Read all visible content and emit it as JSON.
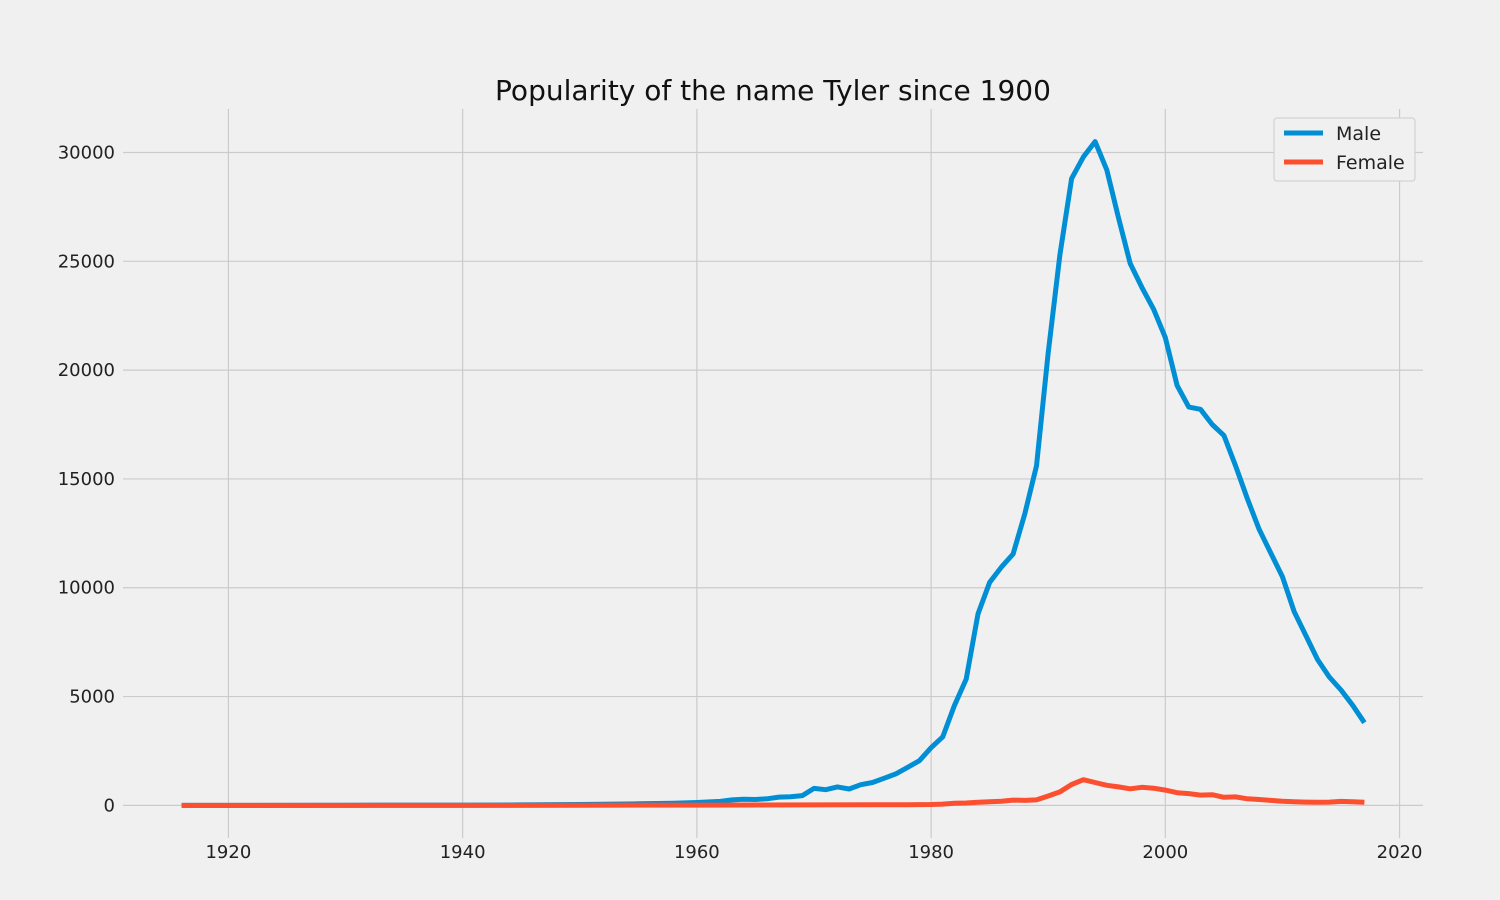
{
  "chart_data": {
    "type": "line",
    "title": "Popularity of the name Tyler since 1900",
    "xlabel": "",
    "ylabel": "",
    "xlim": [
      1911,
      2022
    ],
    "ylim": [
      -1500,
      32000
    ],
    "x_ticks": [
      1920,
      1940,
      1960,
      1980,
      2000,
      2020
    ],
    "y_ticks": [
      0,
      5000,
      10000,
      15000,
      20000,
      25000,
      30000
    ],
    "grid": true,
    "legend_position": "top-right",
    "series": [
      {
        "name": "Male",
        "color": "#008fd5",
        "points": [
          [
            1916,
            0
          ],
          [
            1920,
            0
          ],
          [
            1930,
            5
          ],
          [
            1940,
            10
          ],
          [
            1945,
            20
          ],
          [
            1950,
            40
          ],
          [
            1955,
            70
          ],
          [
            1958,
            100
          ],
          [
            1960,
            130
          ],
          [
            1962,
            180
          ],
          [
            1963,
            250
          ],
          [
            1964,
            280
          ],
          [
            1965,
            270
          ],
          [
            1966,
            300
          ],
          [
            1967,
            380
          ],
          [
            1968,
            400
          ],
          [
            1969,
            450
          ],
          [
            1970,
            780
          ],
          [
            1971,
            720
          ],
          [
            1972,
            850
          ],
          [
            1973,
            750
          ],
          [
            1974,
            950
          ],
          [
            1975,
            1050
          ],
          [
            1976,
            1250
          ],
          [
            1977,
            1450
          ],
          [
            1978,
            1750
          ],
          [
            1979,
            2050
          ],
          [
            1980,
            2650
          ],
          [
            1981,
            3150
          ],
          [
            1982,
            4600
          ],
          [
            1983,
            5800
          ],
          [
            1984,
            8800
          ],
          [
            1985,
            10250
          ],
          [
            1986,
            10950
          ],
          [
            1987,
            11550
          ],
          [
            1988,
            13400
          ],
          [
            1989,
            15600
          ],
          [
            1990,
            20800
          ],
          [
            1991,
            25300
          ],
          [
            1992,
            28800
          ],
          [
            1993,
            29800
          ],
          [
            1994,
            30500
          ],
          [
            1995,
            29200
          ],
          [
            1996,
            27000
          ],
          [
            1997,
            24900
          ],
          [
            1998,
            23800
          ],
          [
            1999,
            22800
          ],
          [
            2000,
            21500
          ],
          [
            2001,
            19300
          ],
          [
            2002,
            18300
          ],
          [
            2003,
            18200
          ],
          [
            2004,
            17500
          ],
          [
            2005,
            17000
          ],
          [
            2006,
            15600
          ],
          [
            2007,
            14100
          ],
          [
            2008,
            12700
          ],
          [
            2009,
            11600
          ],
          [
            2010,
            10500
          ],
          [
            2011,
            8900
          ],
          [
            2012,
            7800
          ],
          [
            2013,
            6700
          ],
          [
            2014,
            5900
          ],
          [
            2015,
            5300
          ],
          [
            2016,
            4600
          ],
          [
            2017,
            3800
          ]
        ]
      },
      {
        "name": "Female",
        "color": "#fc4f30",
        "points": [
          [
            1916,
            0
          ],
          [
            1940,
            0
          ],
          [
            1950,
            5
          ],
          [
            1960,
            10
          ],
          [
            1970,
            20
          ],
          [
            1975,
            25
          ],
          [
            1978,
            30
          ],
          [
            1980,
            40
          ],
          [
            1981,
            60
          ],
          [
            1982,
            100
          ],
          [
            1983,
            110
          ],
          [
            1984,
            140
          ],
          [
            1985,
            170
          ],
          [
            1986,
            190
          ],
          [
            1987,
            240
          ],
          [
            1988,
            230
          ],
          [
            1989,
            250
          ],
          [
            1990,
            430
          ],
          [
            1991,
            620
          ],
          [
            1992,
            960
          ],
          [
            1993,
            1180
          ],
          [
            1994,
            1050
          ],
          [
            1995,
            920
          ],
          [
            1996,
            850
          ],
          [
            1997,
            760
          ],
          [
            1998,
            830
          ],
          [
            1999,
            790
          ],
          [
            2000,
            700
          ],
          [
            2001,
            580
          ],
          [
            2002,
            540
          ],
          [
            2003,
            470
          ],
          [
            2004,
            490
          ],
          [
            2005,
            370
          ],
          [
            2006,
            390
          ],
          [
            2007,
            300
          ],
          [
            2008,
            270
          ],
          [
            2009,
            230
          ],
          [
            2010,
            190
          ],
          [
            2011,
            170
          ],
          [
            2012,
            150
          ],
          [
            2013,
            140
          ],
          [
            2014,
            150
          ],
          [
            2015,
            180
          ],
          [
            2016,
            170
          ],
          [
            2017,
            140
          ]
        ]
      }
    ]
  }
}
